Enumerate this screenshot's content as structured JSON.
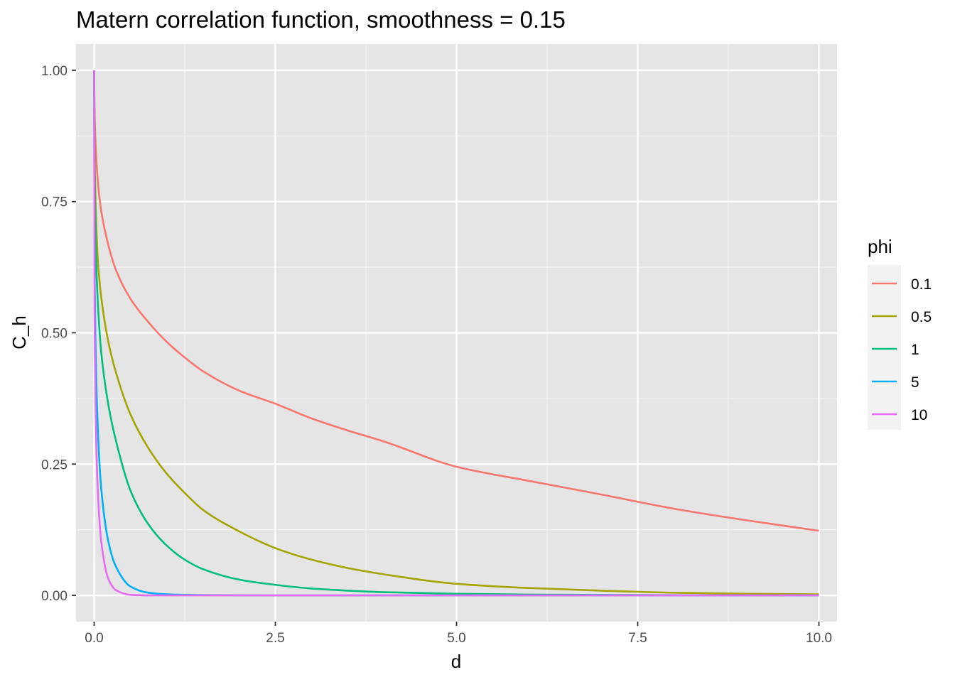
{
  "chart_data": {
    "type": "line",
    "title": "Matern correlation function, smoothness = 0.15",
    "xlabel": "d",
    "ylabel": "C_h",
    "xlim": [
      -0.25,
      10.25
    ],
    "ylim": [
      -0.05,
      1.05
    ],
    "x_ticks": [
      0.0,
      2.5,
      5.0,
      7.5,
      10.0
    ],
    "x_tick_labels": [
      "0.0",
      "2.5",
      "5.0",
      "7.5",
      "10.0"
    ],
    "y_ticks": [
      0.0,
      0.25,
      0.5,
      0.75,
      1.0
    ],
    "y_tick_labels": [
      "0.00",
      "0.25",
      "0.50",
      "0.75",
      "1.00"
    ],
    "grid": true,
    "legend": {
      "title": "phi",
      "position": "right"
    },
    "x": [
      0,
      0.005,
      0.01,
      0.02,
      0.05,
      0.1,
      0.2,
      0.3,
      0.5,
      0.75,
      1.0,
      1.25,
      1.5,
      2.0,
      2.5,
      3.0,
      3.5,
      4.0,
      5.0,
      6.0,
      7.0,
      8.0,
      9.0,
      10.0
    ],
    "series": [
      {
        "name": "0.1",
        "color": "#F8766D",
        "values": [
          1.0,
          0.93,
          0.9,
          0.86,
          0.79,
          0.73,
          0.665,
          0.62,
          0.565,
          0.52,
          0.483,
          0.453,
          0.427,
          0.39,
          0.365,
          0.337,
          0.314,
          0.293,
          0.245,
          0.218,
          0.192,
          0.165,
          0.143,
          0.123
        ]
      },
      {
        "name": "0.5",
        "color": "#A3A500",
        "values": [
          1.0,
          0.86,
          0.81,
          0.75,
          0.64,
          0.565,
          0.48,
          0.425,
          0.345,
          0.28,
          0.232,
          0.195,
          0.163,
          0.122,
          0.09,
          0.068,
          0.052,
          0.04,
          0.022,
          0.014,
          0.009,
          0.005,
          0.003,
          0.002
        ]
      },
      {
        "name": "1",
        "color": "#00BF7D",
        "values": [
          1.0,
          0.81,
          0.75,
          0.67,
          0.56,
          0.46,
          0.36,
          0.295,
          0.2,
          0.135,
          0.095,
          0.068,
          0.05,
          0.03,
          0.02,
          0.013,
          0.009,
          0.006,
          0.003,
          0.0015,
          0.0008,
          0.0004,
          0.0002,
          0.0001
        ]
      },
      {
        "name": "5",
        "color": "#00B0F6",
        "values": [
          1.0,
          0.65,
          0.57,
          0.47,
          0.32,
          0.2,
          0.1,
          0.055,
          0.017,
          0.005,
          0.002,
          0.001,
          0.0005,
          0.0001,
          0,
          0,
          0,
          0,
          0,
          0,
          0,
          0,
          0,
          0
        ]
      },
      {
        "name": "10",
        "color": "#E76BF3",
        "values": [
          1.0,
          0.55,
          0.46,
          0.35,
          0.2,
          0.1,
          0.03,
          0.01,
          0.001,
          0,
          0,
          0,
          0,
          0,
          0,
          0,
          0,
          0,
          0,
          0,
          0,
          0,
          0,
          0
        ]
      }
    ]
  }
}
